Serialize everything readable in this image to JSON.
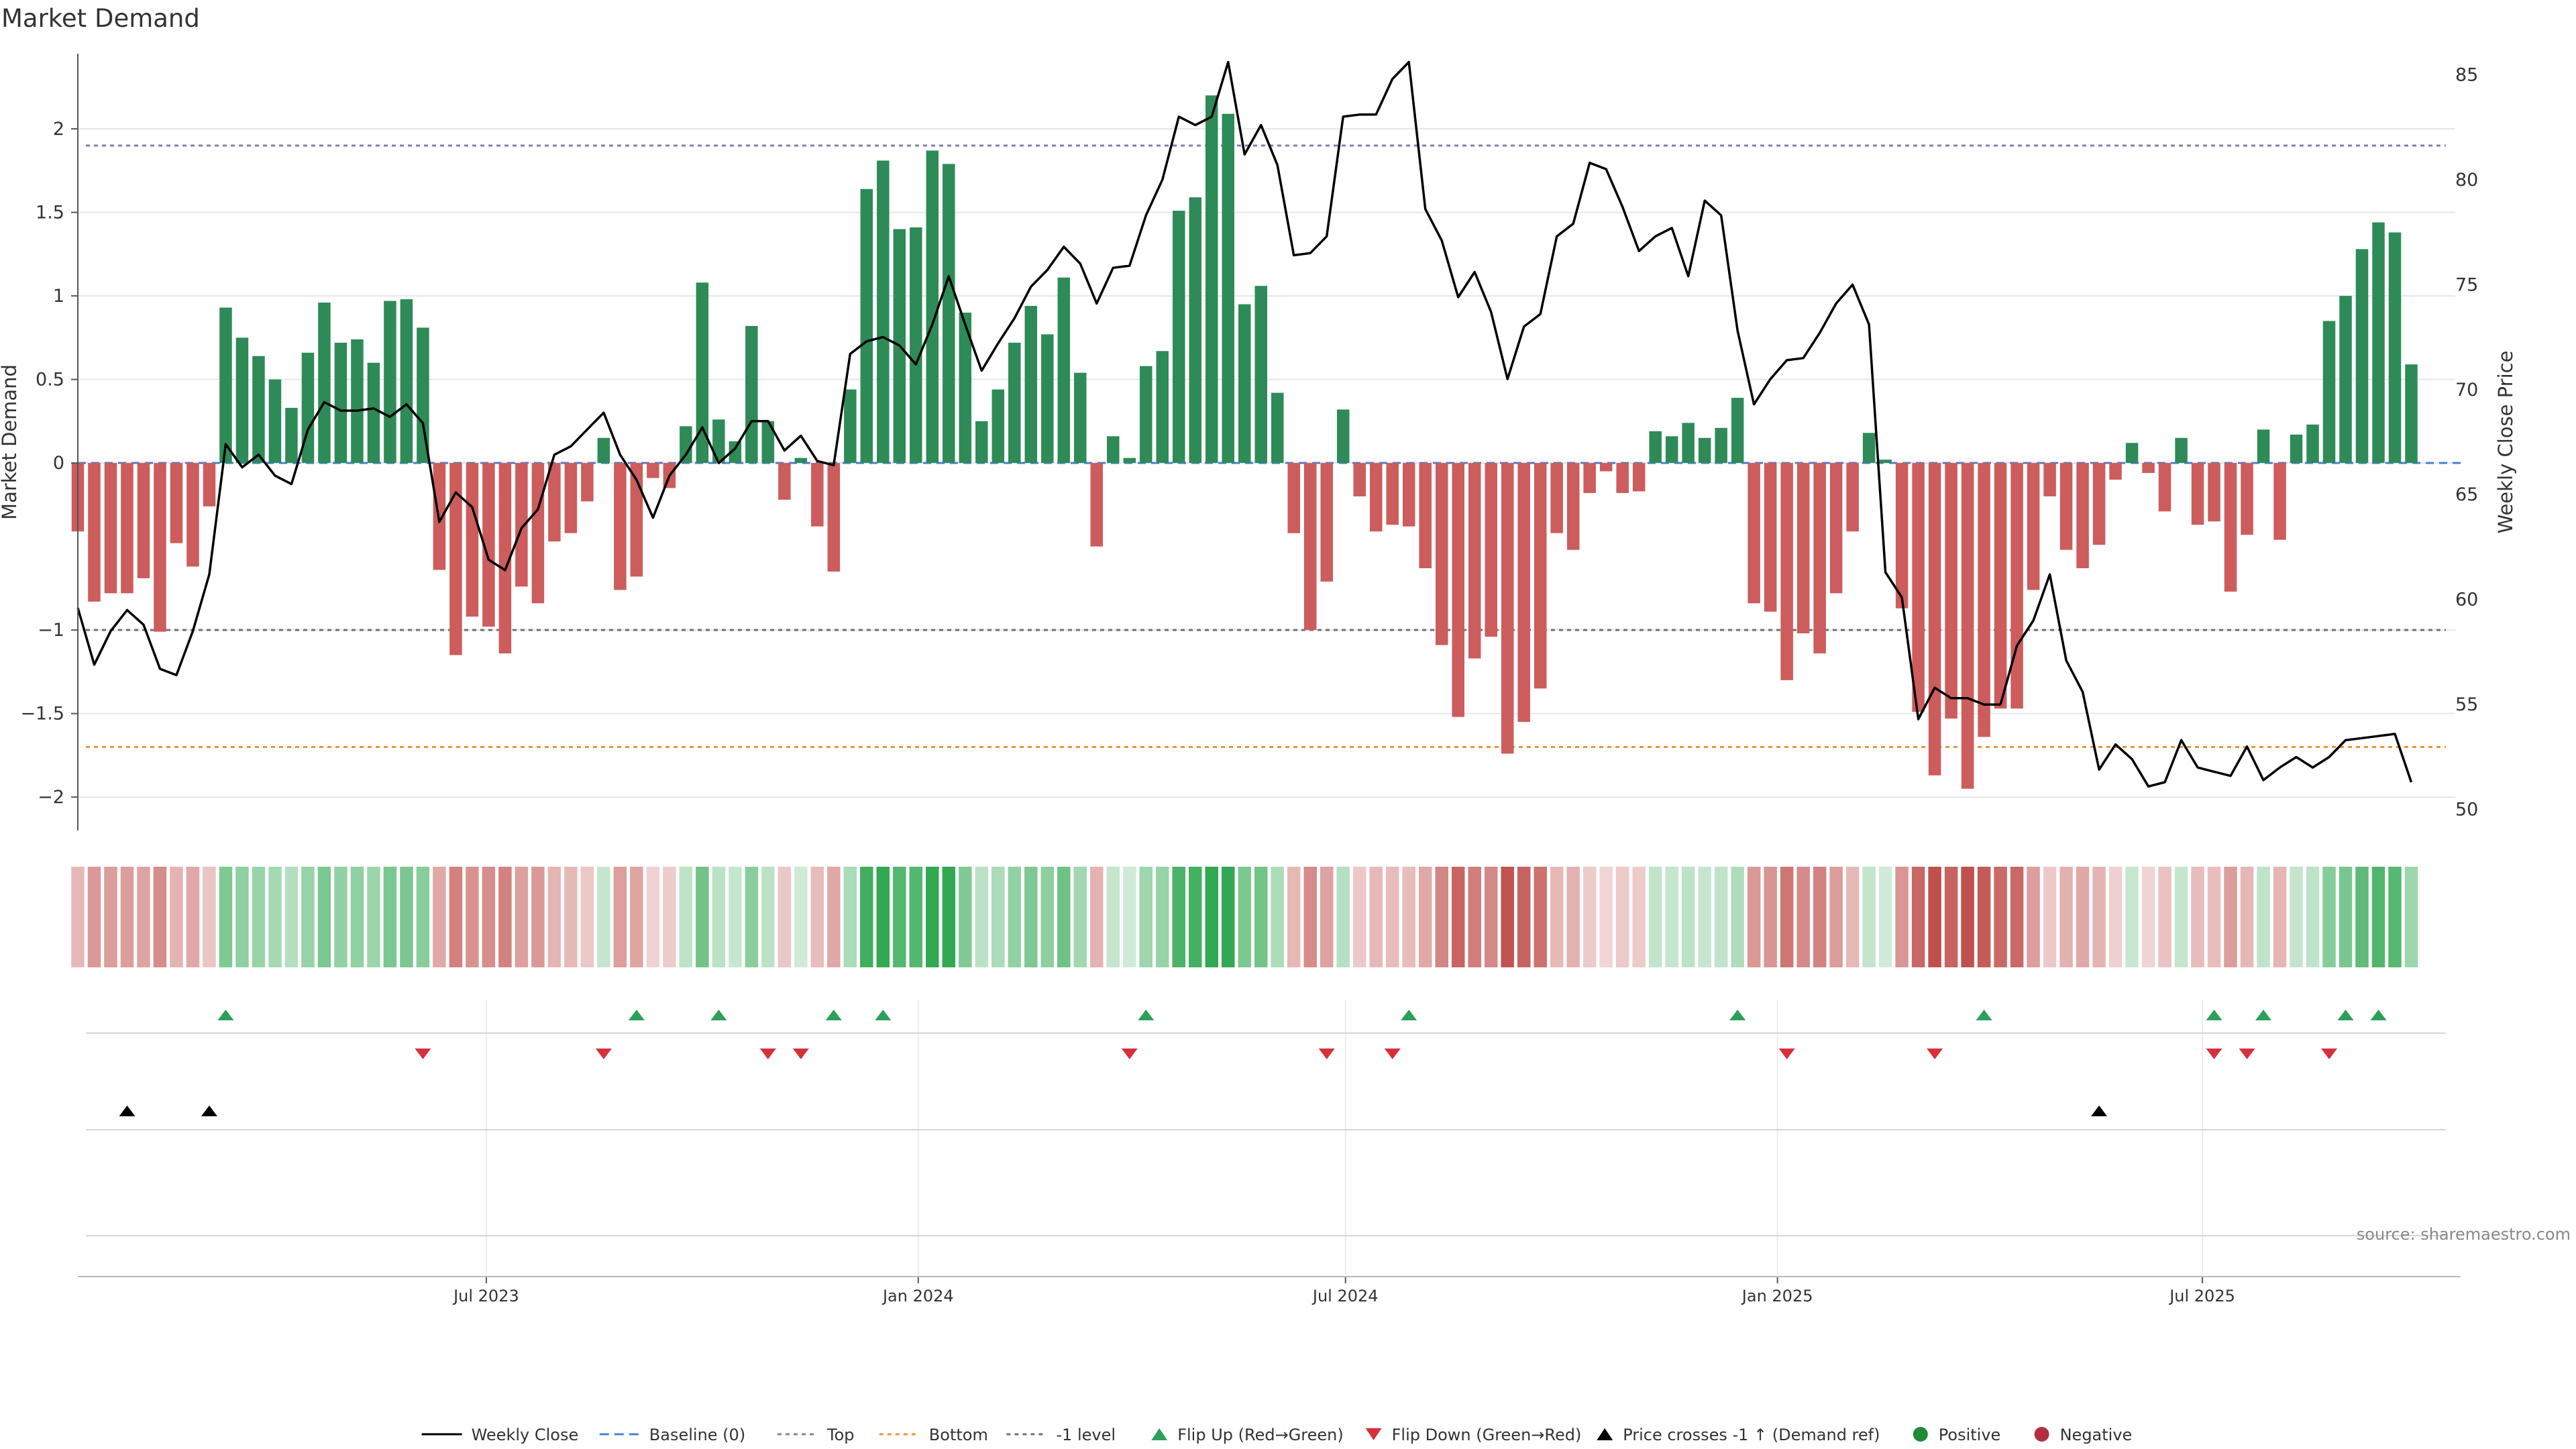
{
  "chart_data": {
    "type": "bar",
    "title": "Market Demand",
    "ylabel": "Market Demand",
    "y2label": "Weekly Close Price",
    "ylim": [
      -2.2,
      2.45
    ],
    "y2lim": [
      49,
      86
    ],
    "yticks": [
      2,
      1.5,
      1,
      0.5,
      0,
      -1,
      -1.5,
      -2
    ],
    "yticklabels": [
      "2",
      "1.5",
      "1",
      "0.5",
      "0",
      "−1",
      "−1.5",
      "−2"
    ],
    "y2ticks": [
      85,
      80,
      75,
      70,
      65,
      60,
      55,
      50
    ],
    "x_start": "2023-01-08",
    "x_step_days": 7,
    "x_end": "2025-10-19",
    "xticks": [
      {
        "date": "2023-07-01",
        "label": "Jul 2023"
      },
      {
        "date": "2024-01-01",
        "label": "Jan 2024"
      },
      {
        "date": "2024-07-01",
        "label": "Jul 2024"
      },
      {
        "date": "2025-01-01",
        "label": "Jan 2025"
      },
      {
        "date": "2025-07-01",
        "label": "Jul 2025"
      }
    ],
    "levels": {
      "top": 1.9,
      "bottom": -1.7,
      "minus_one": -1
    },
    "demand": [
      -0.41,
      -0.83,
      -0.78,
      -0.78,
      -0.69,
      -1.01,
      -0.48,
      -0.62,
      -0.26,
      0.93,
      0.75,
      0.64,
      0.5,
      0.33,
      0.66,
      0.96,
      0.72,
      0.74,
      0.6,
      0.97,
      0.98,
      0.81,
      -0.64,
      -1.15,
      -0.92,
      -0.98,
      -1.14,
      -0.74,
      -0.84,
      -0.47,
      -0.42,
      -0.23,
      0.15,
      -0.76,
      -0.68,
      -0.09,
      -0.15,
      0.22,
      1.08,
      0.26,
      0.13,
      0.82,
      0.25,
      -0.22,
      0.03,
      -0.38,
      -0.65,
      0.44,
      1.64,
      1.81,
      1.4,
      1.41,
      1.87,
      1.79,
      0.9,
      0.25,
      0.44,
      0.72,
      0.94,
      0.77,
      1.11,
      0.54,
      -0.5,
      0.16,
      0.03,
      0.58,
      0.67,
      1.51,
      1.59,
      2.2,
      2.09,
      0.95,
      1.06,
      0.42,
      -0.42,
      -1.0,
      -0.71,
      0.32,
      -0.2,
      -0.41,
      -0.37,
      -0.38,
      -0.63,
      -1.09,
      -1.52,
      -1.17,
      -1.04,
      -1.74,
      -1.55,
      -1.35,
      -0.42,
      -0.52,
      -0.18,
      -0.05,
      -0.18,
      -0.17,
      0.19,
      0.16,
      0.24,
      0.15,
      0.21,
      0.39,
      -0.84,
      -0.89,
      -1.3,
      -1.02,
      -1.14,
      -0.78,
      -0.41,
      0.18,
      0.02,
      -0.87,
      -1.49,
      -1.87,
      -1.53,
      -1.95,
      -1.64,
      -1.47,
      -1.47,
      -0.76,
      -0.2,
      -0.52,
      -0.63,
      -0.49,
      -0.1,
      0.12,
      -0.06,
      -0.29,
      0.15,
      -0.37,
      -0.35,
      -0.77,
      -0.43,
      0.2,
      -0.46,
      0.17,
      0.23,
      0.85,
      1.0,
      1.28,
      1.44,
      1.38,
      0.59
    ],
    "series": [
      {
        "name": "Weekly Close",
        "values": [
          59.6,
          56.9,
          58.5,
          59.5,
          58.8,
          56.7,
          56.4,
          58.5,
          61.2,
          67.4,
          66.3,
          66.9,
          65.9,
          65.5,
          68.1,
          69.4,
          69.0,
          69.0,
          69.1,
          68.7,
          69.3,
          68.4,
          63.7,
          65.1,
          64.4,
          61.9,
          61.4,
          63.4,
          64.3,
          66.9,
          67.3,
          68.1,
          68.9,
          66.9,
          65.7,
          63.9,
          65.9,
          66.9,
          68.2,
          66.5,
          67.2,
          68.5,
          68.5,
          67.1,
          67.8,
          66.6,
          66.4,
          71.7,
          72.3,
          72.5,
          72.1,
          71.2,
          73.1,
          75.4,
          73.1,
          70.9,
          72.2,
          73.4,
          74.9,
          75.7,
          76.8,
          76.0,
          74.1,
          75.8,
          75.9,
          78.3,
          80.0,
          83.0,
          82.6,
          83.0,
          85.6,
          81.2,
          82.6,
          80.7,
          76.4,
          76.5,
          77.3,
          83.0,
          83.1,
          83.1,
          84.8,
          85.6,
          78.6,
          77.1,
          74.4,
          75.6,
          73.7,
          70.5,
          73.0,
          73.6,
          77.3,
          77.9,
          80.8,
          80.5,
          78.7,
          76.6,
          77.3,
          77.7,
          75.4,
          79.0,
          78.3,
          72.8,
          69.3,
          70.5,
          71.4,
          71.5,
          72.7,
          74.1,
          75.0,
          73.1,
          61.3,
          60.1,
          54.3,
          55.8,
          55.3,
          55.3,
          55.0,
          55.0,
          57.8,
          59.0,
          61.2,
          57.1,
          55.6,
          51.9,
          53.1,
          52.4,
          51.1,
          51.3,
          53.3,
          52.0,
          51.8,
          51.6,
          53.0,
          51.4,
          52.0,
          52.5,
          52.0,
          52.5,
          53.3,
          53.4,
          53.5,
          53.6,
          51.3
        ]
      }
    ],
    "flip_up_labels": [
      "2023-03-12",
      "2023-09-03",
      "2023-10-08",
      "2023-11-26",
      "2023-12-17",
      "2024-04-07",
      "2024-07-28",
      "2024-12-15",
      "2025-03-30",
      "2025-07-06",
      "2025-07-27",
      "2025-08-31",
      "2025-09-14"
    ],
    "flip_down_labels": [
      "2023-06-04",
      "2023-08-20",
      "2023-10-29",
      "2023-11-12",
      "2024-03-31",
      "2024-06-23",
      "2024-07-21",
      "2025-01-05",
      "2025-03-09",
      "2025-07-06",
      "2025-07-20",
      "2025-08-24"
    ],
    "cross_up_labels": [
      "2023-01-29",
      "2023-03-05",
      "2025-05-18"
    ],
    "legend": [
      {
        "label": "Weekly Close",
        "kind": "line-solid",
        "color": "#000000"
      },
      {
        "label": "Baseline (0)",
        "kind": "line-dashed",
        "color": "#4a7fd4"
      },
      {
        "label": "Top",
        "kind": "line-dotted",
        "color": "#8080b0"
      },
      {
        "label": "Bottom",
        "kind": "line-dotted",
        "color": "#e8963c"
      },
      {
        "label": "-1 level",
        "kind": "line-dotted",
        "color": "#707070"
      },
      {
        "label": "Flip Up (Red→Green)",
        "kind": "tri-up",
        "color": "#2ca05a"
      },
      {
        "label": "Flip Down (Green→Red)",
        "kind": "tri-down",
        "color": "#d6303a"
      },
      {
        "label": "Price crosses -1 ↑ (Demand ref)",
        "kind": "tri-up",
        "color": "#000000"
      },
      {
        "label": "Positive",
        "kind": "dot",
        "color": "#1f8a3a"
      },
      {
        "label": "Negative",
        "kind": "dot",
        "color": "#b03040"
      }
    ],
    "legend_placement": "bottom",
    "source": "source: sharemaestro.com"
  },
  "colors": {
    "positive_bar": "#2e8b57",
    "negative_bar": "#cd5c5c",
    "price_line": "#000000",
    "baseline": "#4a7fd4",
    "top_level": "#8080b0",
    "bottom_level": "#e8963c",
    "minus_one_level": "#707070",
    "grid": "#e6e6e6"
  }
}
